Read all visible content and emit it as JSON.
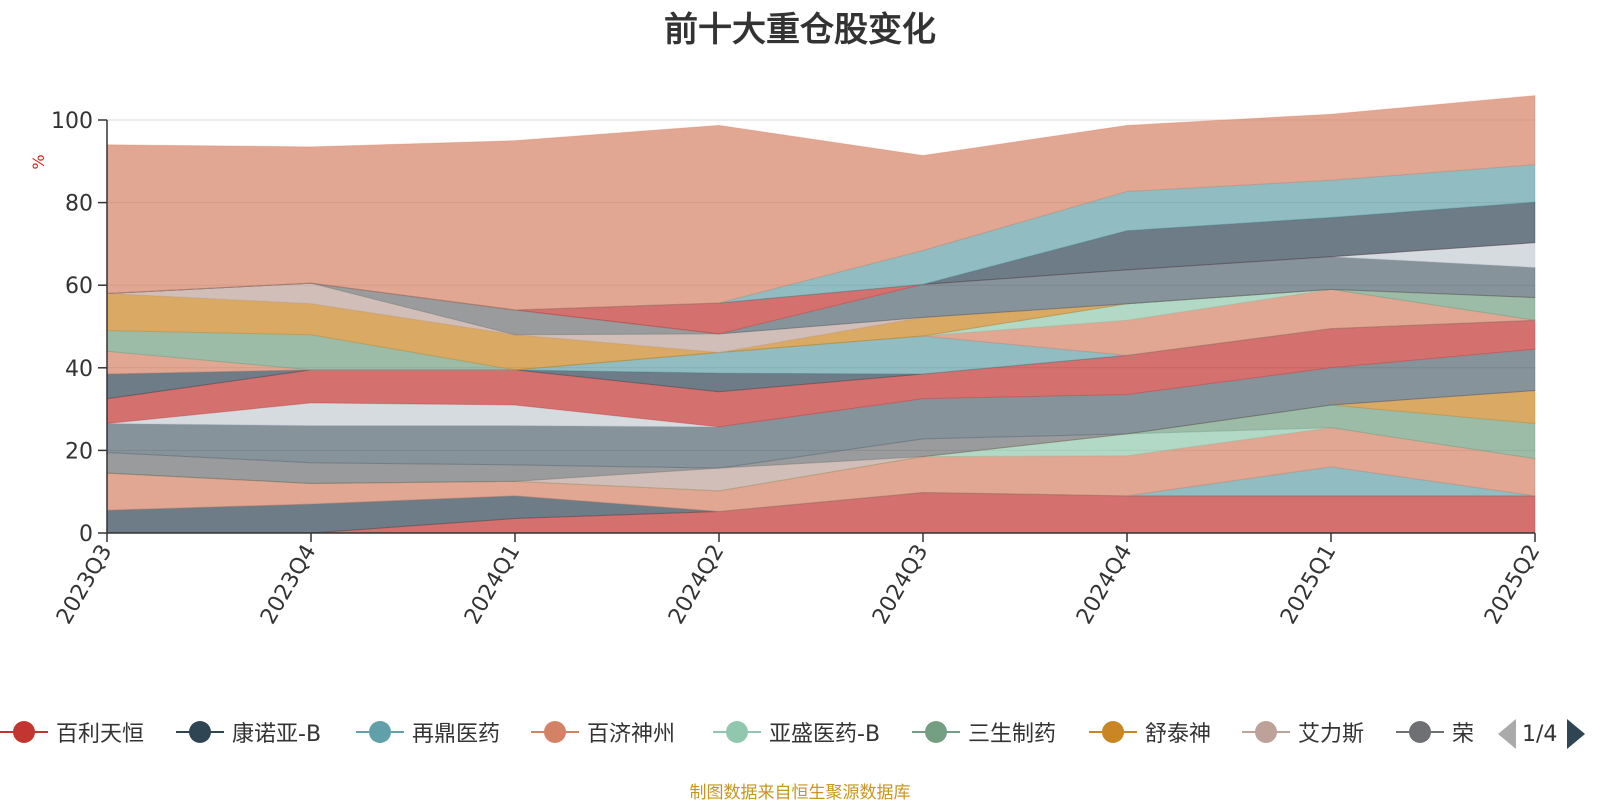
{
  "chart_data": {
    "type": "area",
    "stacked": true,
    "title": "前十大重仓股变化",
    "ylabel": "%",
    "ylim": [
      0,
      100
    ],
    "yticks": [
      0,
      20,
      40,
      60,
      80,
      100
    ],
    "categories": [
      "2023Q3",
      "2023Q4",
      "2024Q1",
      "2024Q2",
      "2024Q3",
      "2024Q4",
      "2025Q1",
      "2025Q2"
    ],
    "series": [
      {
        "name": "百利天恒",
        "color": "#c23531",
        "values": [
          0,
          0,
          3.5,
          5.2,
          9.8,
          9,
          9,
          9
        ]
      },
      {
        "name": "康诺亚-B",
        "color": "#2f4554",
        "values": [
          5.5,
          7,
          5.5,
          0,
          0,
          0,
          0,
          0
        ]
      },
      {
        "name": "再鼎医药",
        "color": "#61a0a8",
        "values": [
          0,
          0,
          0,
          0,
          0,
          0,
          7,
          0
        ]
      },
      {
        "name": "百济神州",
        "color": "#d48265",
        "values": [
          9,
          5,
          3.5,
          5,
          8.7,
          9.7,
          9.5,
          9
        ]
      },
      {
        "name": "亚盛医药-B",
        "color": "#91c7ae",
        "values": [
          0,
          0,
          0,
          0,
          0,
          5.3,
          0,
          0
        ]
      },
      {
        "name": "三生制药",
        "color": "#749f83",
        "values": [
          0,
          0,
          0,
          0,
          0,
          0,
          5.5,
          8.5
        ]
      },
      {
        "name": "舒泰神",
        "color": "#ca8622",
        "values": [
          0,
          0,
          0,
          0,
          0,
          0,
          0,
          8
        ]
      },
      {
        "name": "艾力斯",
        "color": "#bda29a",
        "values": [
          0,
          0,
          0,
          5.5,
          0,
          0,
          0,
          0
        ]
      },
      {
        "name": "荣",
        "color": "#6e7074",
        "values": [
          5,
          5,
          4,
          0,
          4.3,
          0,
          0,
          0
        ]
      },
      {
        "values": [
          7,
          9,
          9.5,
          10,
          9.7,
          9.5,
          9,
          10
        ]
      },
      {
        "values": [
          0,
          5.5,
          5,
          0,
          0,
          0,
          0,
          0
        ]
      },
      {
        "values": [
          6,
          8,
          8.5,
          8.5,
          6,
          9.5,
          9.5,
          7
        ]
      },
      {
        "values": [
          6,
          0,
          0,
          4.5,
          0,
          0,
          0,
          0
        ]
      },
      {
        "values": [
          0,
          0,
          0,
          5,
          9.2,
          0,
          0,
          0
        ]
      },
      {
        "values": [
          5.5,
          0,
          0,
          0,
          0,
          8.5,
          9.5,
          0
        ]
      },
      {
        "values": [
          0,
          0,
          0,
          0,
          0,
          4,
          0,
          0
        ]
      },
      {
        "values": [
          5,
          8.5,
          0,
          0,
          0,
          0,
          0,
          5.5
        ]
      },
      {
        "values": [
          9,
          7.5,
          8.5,
          0,
          4.5,
          0,
          0,
          0
        ]
      },
      {
        "values": [
          0,
          5,
          0,
          4.5,
          0,
          0,
          0,
          0
        ]
      },
      {
        "values": [
          0,
          0,
          6,
          0,
          0,
          0,
          0,
          0
        ]
      },
      {
        "values": [
          0,
          0,
          0,
          0,
          8,
          8.2,
          7.9,
          7.3
        ]
      },
      {
        "values": [
          0,
          0,
          0,
          0,
          0,
          0,
          0,
          6
        ]
      },
      {
        "values": [
          0,
          0,
          0,
          7.5,
          0,
          0,
          0,
          0
        ]
      },
      {
        "values": [
          0,
          0,
          0,
          0,
          0,
          9.5,
          9.5,
          9.8
        ]
      },
      {
        "values": [
          0,
          0,
          0,
          0,
          8.2,
          9.5,
          9,
          9.1
        ]
      },
      {
        "values": [
          36,
          33,
          41,
          43,
          23,
          16,
          16,
          16.7
        ]
      }
    ]
  },
  "legend": {
    "items": [
      "百利天恒",
      "康诺亚-B",
      "再鼎医药",
      "百济神州",
      "亚盛医药-B",
      "三生制药",
      "舒泰神",
      "艾力斯",
      "荣"
    ],
    "page_text": "1/4"
  },
  "source_note": "制图数据来自恒生聚源数据库"
}
